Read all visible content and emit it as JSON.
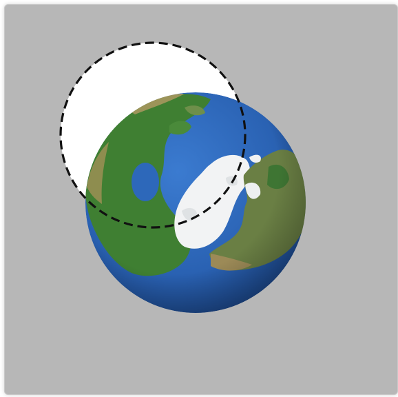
{
  "canvas": {
    "background": "#b7b7b7"
  },
  "globe": {
    "icon": "earth-north-pole-globe-icon",
    "ocean_color": "#2a64b6",
    "land_color": "#3f7f32",
    "ice_color": "#f2f3f4"
  },
  "selection_circle": {
    "fill": "#ffffff",
    "stroke": "#111111",
    "style": "dashed"
  }
}
